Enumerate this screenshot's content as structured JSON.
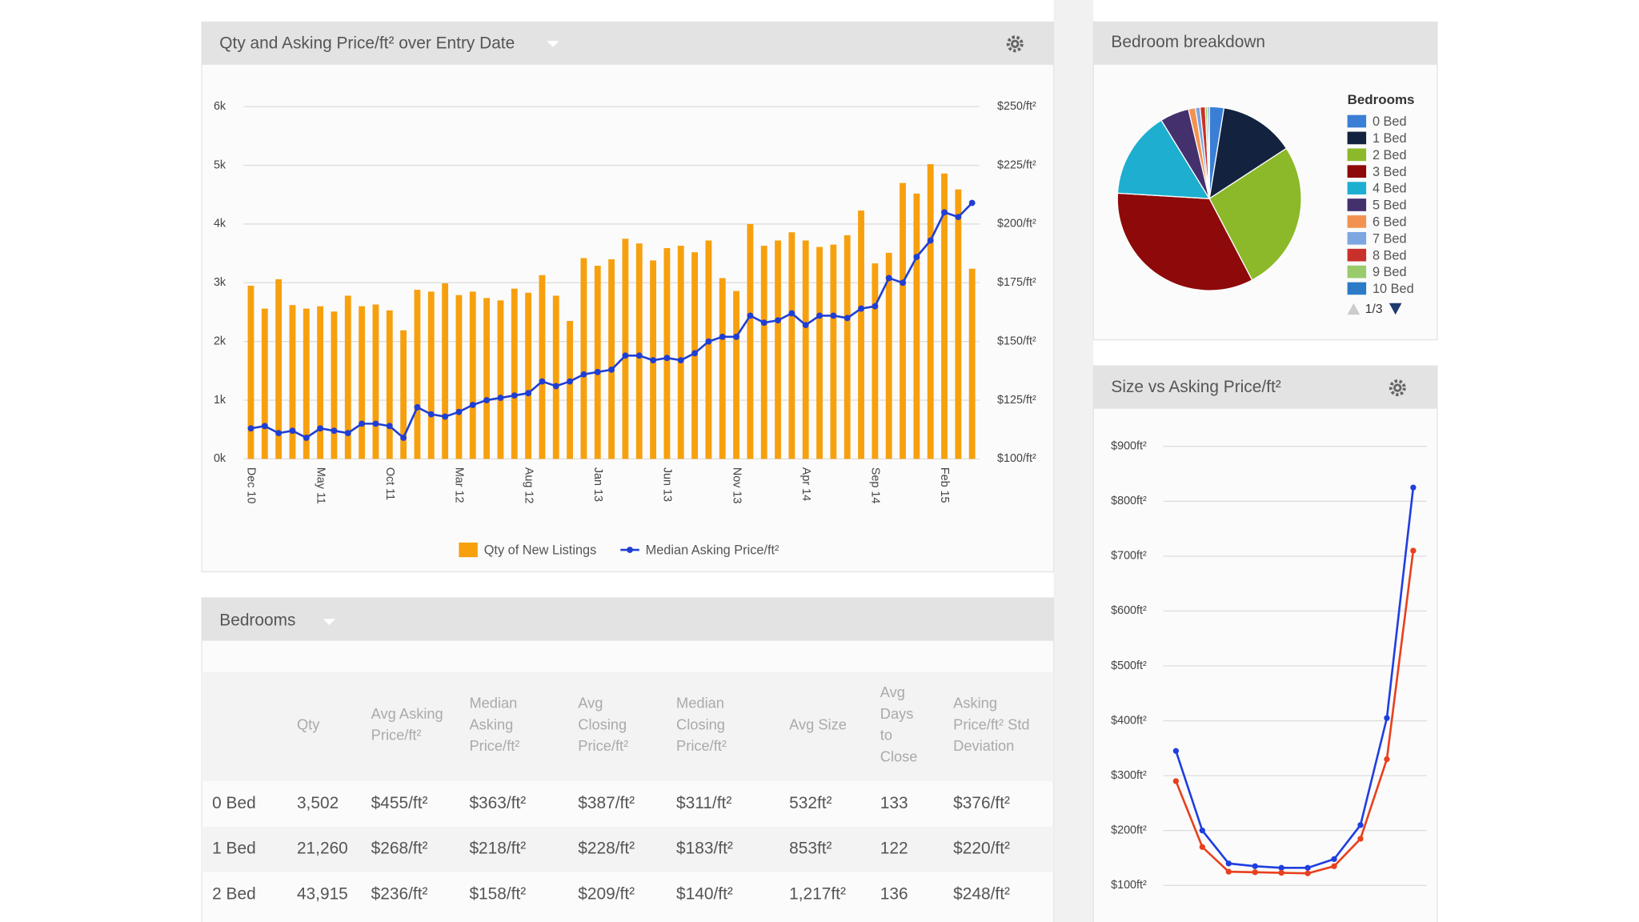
{
  "chart_data": [
    {
      "type": "combo",
      "title": "Qty and Asking Price/ft² over Entry Date",
      "categories": [
        "Dec 10",
        null,
        null,
        null,
        null,
        "May 11",
        null,
        null,
        null,
        null,
        "Oct 11",
        null,
        null,
        null,
        null,
        "Mar 12",
        null,
        null,
        null,
        null,
        "Aug 12",
        null,
        null,
        null,
        null,
        "Jan 13",
        null,
        null,
        null,
        null,
        "Jun 13",
        null,
        null,
        null,
        null,
        "Nov 13",
        null,
        null,
        null,
        null,
        "Apr 14",
        null,
        null,
        null,
        null,
        "Sep 14",
        null,
        null,
        null,
        null,
        "Feb 15",
        null,
        null
      ],
      "series": [
        {
          "name": "Qty of New Listings",
          "type": "bar",
          "color": "#f7a00e",
          "values": [
            2950,
            2560,
            3060,
            2620,
            2560,
            2600,
            2510,
            2780,
            2600,
            2630,
            2530,
            2190,
            2880,
            2850,
            2990,
            2790,
            2850,
            2740,
            2700,
            2900,
            2830,
            3130,
            2780,
            2350,
            3420,
            3290,
            3400,
            3750,
            3670,
            3380,
            3590,
            3630,
            3520,
            3720,
            3080,
            2860,
            4000,
            3630,
            3720,
            3860,
            3720,
            3610,
            3650,
            3810,
            4230,
            3330,
            3510,
            4700,
            4520,
            5020,
            4860,
            4590,
            3240
          ]
        },
        {
          "name": "Median Asking Price/ft²",
          "type": "line",
          "axis": "y2",
          "color": "#1f3fd4",
          "values": [
            113,
            114,
            111,
            112,
            109,
            113,
            112,
            111,
            115,
            115,
            114,
            109,
            122,
            119,
            118,
            120,
            123,
            125,
            126,
            127,
            128,
            133,
            131,
            133,
            136,
            137,
            138,
            144,
            144,
            142,
            143,
            142,
            145,
            150,
            152,
            152,
            161,
            158,
            159,
            162,
            157,
            161,
            161,
            160,
            164,
            165,
            177,
            175,
            186,
            193,
            205,
            203,
            209
          ]
        }
      ],
      "ylim": [
        0,
        6000
      ],
      "yticks": [
        {
          "value": 0,
          "label": "0k"
        },
        {
          "value": 1000,
          "label": "1k"
        },
        {
          "value": 2000,
          "label": "2k"
        },
        {
          "value": 3000,
          "label": "3k"
        },
        {
          "value": 4000,
          "label": "4k"
        },
        {
          "value": 5000,
          "label": "5k"
        },
        {
          "value": 6000,
          "label": "6k"
        }
      ],
      "y2lim": [
        100,
        250
      ],
      "y2ticks": [
        {
          "value": 100,
          "label": "$100/ft²"
        },
        {
          "value": 125,
          "label": "$125/ft²"
        },
        {
          "value": 150,
          "label": "$150/ft²"
        },
        {
          "value": 175,
          "label": "$175/ft²"
        },
        {
          "value": 200,
          "label": "$200/ft²"
        },
        {
          "value": 225,
          "label": "$225/ft²"
        },
        {
          "value": 250,
          "label": "$250/ft²"
        }
      ],
      "grid": true
    },
    {
      "type": "pie",
      "title": "Bedroom breakdown",
      "legend_title": "Bedrooms",
      "legend_page": "1/3",
      "categories": [
        "0 Bed",
        "1 Bed",
        "2 Bed",
        "3 Bed",
        "4 Bed",
        "5 Bed",
        "6 Bed",
        "7 Bed",
        "8 Bed",
        "9 Bed",
        "10 Bed"
      ],
      "values": [
        2.5,
        13,
        26,
        33,
        15,
        5,
        1.2,
        0.8,
        0.9,
        0.4,
        0.3
      ],
      "colors": [
        "#3a7fd5",
        "#13233f",
        "#8cb92a",
        "#8e0a0a",
        "#1eafd0",
        "#45306e",
        "#f39250",
        "#7da7e0",
        "#c9302c",
        "#9acb6a",
        "#2b7bc8"
      ]
    },
    {
      "type": "line",
      "title": "Size vs Asking Price/ft²",
      "categories": [
        null,
        null,
        null,
        null,
        null,
        null,
        null,
        null,
        null,
        null
      ],
      "series": [
        {
          "color": "#1f3ee0",
          "values": [
            345,
            200,
            140,
            135,
            132,
            132,
            148,
            210,
            405,
            825
          ]
        },
        {
          "color": "#e8401c",
          "values": [
            290,
            170,
            125,
            124,
            123,
            122,
            135,
            185,
            330,
            710
          ]
        }
      ],
      "ylim": [
        100,
        900
      ],
      "yticks": [
        {
          "value": 100,
          "label": "$100ft²"
        },
        {
          "value": 200,
          "label": "$200ft²"
        },
        {
          "value": 300,
          "label": "$300ft²"
        },
        {
          "value": 400,
          "label": "$400ft²"
        },
        {
          "value": 500,
          "label": "$500ft²"
        },
        {
          "value": 600,
          "label": "$600ft²"
        },
        {
          "value": 700,
          "label": "$700ft²"
        },
        {
          "value": 800,
          "label": "$800ft²"
        },
        {
          "value": 900,
          "label": "$900ft²"
        }
      ],
      "grid": true
    }
  ],
  "table": {
    "title": "Bedrooms",
    "columns": [
      [
        "Qty"
      ],
      [
        "Avg Asking",
        "Price/ft²"
      ],
      [
        "Median",
        "Asking",
        "Price/ft²"
      ],
      [
        "Avg",
        "Closing",
        "Price/ft²"
      ],
      [
        "Median",
        "Closing",
        "Price/ft²"
      ],
      [
        "Avg Size"
      ],
      [
        "Avg",
        "Days",
        "to",
        "Close"
      ],
      [
        "Asking",
        "Price/ft² Std",
        "Deviation"
      ]
    ],
    "rows": [
      [
        "0 Bed",
        "3,502",
        "$455/ft²",
        "$363/ft²",
        "$387/ft²",
        "$311/ft²",
        "532ft²",
        "133",
        "$376/ft²"
      ],
      [
        "1 Bed",
        "21,260",
        "$268/ft²",
        "$218/ft²",
        "$228/ft²",
        "$183/ft²",
        "853ft²",
        "122",
        "$220/ft²"
      ],
      [
        "2 Bed",
        "43,915",
        "$236/ft²",
        "$158/ft²",
        "$209/ft²",
        "$140/ft²",
        "1,217ft²",
        "136",
        "$248/ft²"
      ]
    ]
  }
}
